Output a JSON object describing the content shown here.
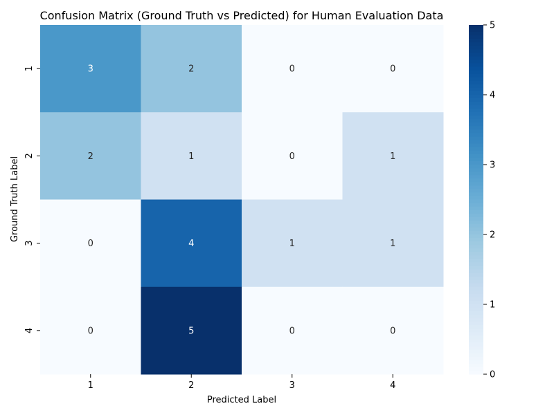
{
  "chart_data": {
    "type": "heatmap",
    "title": "Confusion Matrix (Ground Truth vs Predicted) for Human Evaluation Data",
    "xlabel": "Predicted Label",
    "ylabel": "Ground Truth Label",
    "x_categories": [
      "1",
      "2",
      "3",
      "4"
    ],
    "y_categories": [
      "1",
      "2",
      "3",
      "4"
    ],
    "values": [
      [
        3,
        2,
        0,
        0
      ],
      [
        2,
        1,
        0,
        1
      ],
      [
        0,
        4,
        1,
        1
      ],
      [
        0,
        5,
        0,
        0
      ]
    ],
    "colorbar": {
      "min": 0,
      "max": 5,
      "ticks": [
        "0",
        "1",
        "2",
        "3",
        "4",
        "5"
      ],
      "colormap": "Blues"
    },
    "annotations": "cell values"
  }
}
